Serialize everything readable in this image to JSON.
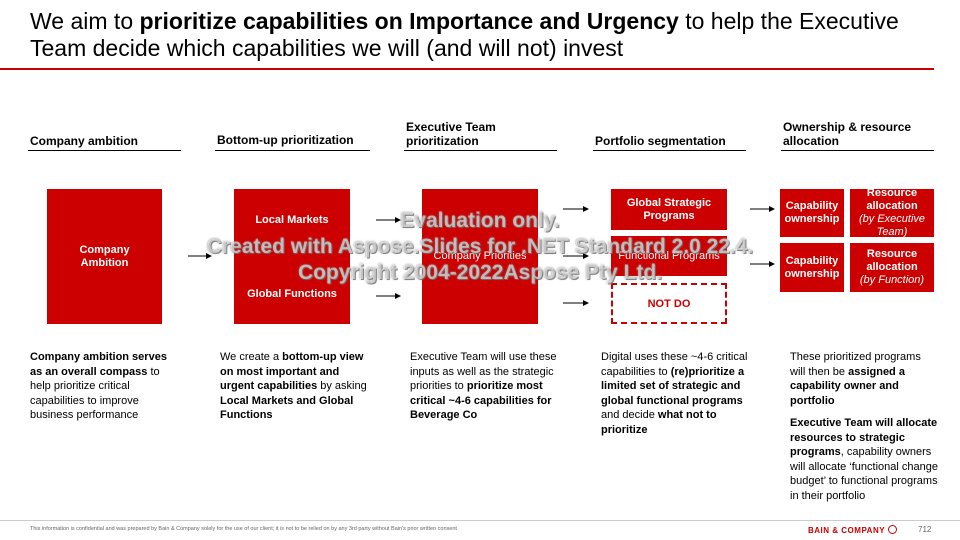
{
  "title": {
    "part1": "We aim to ",
    "bold": "prioritize capabilities on Importance and Urgency",
    "part2": " to help the Executive Team decide which capabilities we will (and will not) invest"
  },
  "columns": [
    {
      "heading": "Company ambition"
    },
    {
      "heading": "Bottom-up prioritization"
    },
    {
      "heading": "Executive Team prioritization"
    },
    {
      "heading": "Portfolio segmentation"
    },
    {
      "heading": "Ownership & resource allocation"
    }
  ],
  "boxes": {
    "company_ambition": "Company Ambition",
    "local_markets": "Local Markets",
    "global_functions": "Global Functions",
    "company_priorities": "Company Priorities",
    "global_strategic_programs": "Global Strategic Programs",
    "functional_programs": "Functional Programs",
    "not_do": "NOT DO",
    "capability_ownership_1": "Capability ownership",
    "capability_ownership_2": "Capability ownership",
    "resource_allocation_1": "Resource allocation",
    "resource_allocation_1_note": "(by Executive Team)",
    "resource_allocation_2": "Resource allocation",
    "resource_allocation_2_note": "(by Function)"
  },
  "descriptions": {
    "col1": {
      "b1": "Company ambition serves as an overall compass",
      "t1": " to help prioritize critical capabilities to improve business performance"
    },
    "col2": {
      "t1": "We create a ",
      "b1": "bottom-up view on most important and urgent capabilities",
      "t2": " by asking ",
      "b2": "Local Markets and Global Functions"
    },
    "col3": {
      "t1": "Executive Team will use these inputs as well as the strategic priorities to ",
      "b1": "prioritize most critical ~4-6 capabilities for Beverage Co"
    },
    "col4": {
      "t1": "Digital uses these ~4-6 critical capabilities to ",
      "b1": "(re)prioritize a limited set of strategic and global functional programs",
      "t2": "and decide ",
      "b2": "what not to prioritize"
    },
    "col5": {
      "t1": "These prioritized programs will then be ",
      "b1": "assigned a capability owner and portfolio",
      "b2": "Executive Team will allocate resources to strategic programs",
      "t2": ", capability owners will allocate ‘functional change budget’ to functional programs in their portfolio"
    }
  },
  "watermark": {
    "line1": "Evaluation only.",
    "line2": "Created with Aspose.Slides for .NET Standard 2.0 22.4.",
    "line3": "Copyright 2004-2022Aspose Pty Ltd."
  },
  "footer": {
    "disclaimer": "This information is confidential and was prepared by Bain & Company solely for the use of our client; it is not to be relied on by any 3rd party without Bain's prior written consent",
    "brand": "BAIN & COMPANY",
    "page": "712"
  },
  "colors": {
    "accent": "#cc0000",
    "text": "#000000"
  },
  "icons": [
    "arrow-right-icon",
    "bain-logo-icon"
  ]
}
